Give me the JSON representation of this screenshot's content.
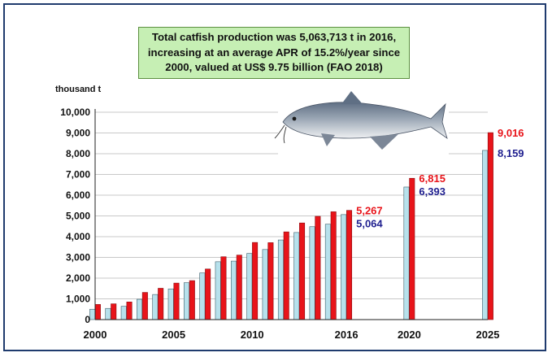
{
  "annotation": {
    "line1": "Total catfish production was 5,063,713 t in 2016,",
    "line2": "increasing at an average APR of 15.2%/year since",
    "line3": "2000, valued at US$ 9.75 billion (FAO 2018)"
  },
  "image_icon": "catfish-photo",
  "colors": {
    "series_a": "#b7e1ec",
    "series_b": "#e8141a",
    "label_a": "#1f1f8f",
    "label_b": "#e8141a",
    "highlight_tick": "#2b3ccf",
    "frame": "#1f3b6e"
  },
  "chart_data": {
    "type": "bar",
    "ylabel": "thousand t",
    "ylim": [
      0,
      10000
    ],
    "yticks": [
      "0",
      "1,000",
      "2,000",
      "3,000",
      "4,000",
      "5,000",
      "6,000",
      "7,000",
      "8,000",
      "9,000",
      "10,000"
    ],
    "x_start": 2000,
    "x_end": 2025,
    "xtick_labels": [
      "2000",
      "2005",
      "2010",
      "2016",
      "2020",
      "2025"
    ],
    "highlight_tick": "2016",
    "grid": true,
    "legend": "none",
    "categories": [
      2000,
      2001,
      2002,
      2003,
      2004,
      2005,
      2006,
      2007,
      2008,
      2009,
      2010,
      2011,
      2012,
      2013,
      2014,
      2015,
      2016,
      2020,
      2025
    ],
    "series": [
      {
        "values": [
          500,
          540,
          640,
          980,
          1210,
          1480,
          1780,
          2250,
          2790,
          2820,
          3190,
          3380,
          3840,
          4200,
          4480,
          4600,
          5064,
          6393,
          8159
        ]
      },
      {
        "values": [
          730,
          760,
          850,
          1310,
          1510,
          1760,
          1880,
          2440,
          3030,
          3110,
          3720,
          3710,
          4230,
          4660,
          4980,
          5200,
          5267,
          6815,
          9016
        ]
      }
    ],
    "data_labels": [
      {
        "year": 2016,
        "a": "5,064",
        "b": "5,267"
      },
      {
        "year": 2020,
        "a": "6,393",
        "b": "6,815"
      },
      {
        "year": 2025,
        "a": "8,159",
        "b": "9,016"
      }
    ]
  }
}
